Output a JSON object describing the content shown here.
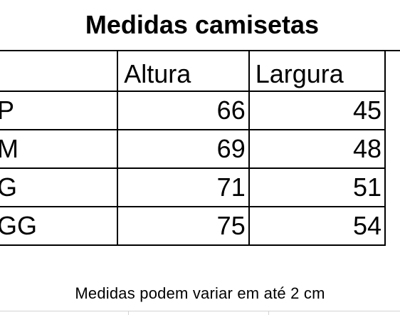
{
  "title": "Medidas camisetas",
  "table": {
    "headers": [
      "",
      "Altura",
      "Largura"
    ],
    "rows": [
      {
        "size": "P",
        "altura": "66",
        "largura": "45"
      },
      {
        "size": "M",
        "altura": "69",
        "largura": "48"
      },
      {
        "size": "G",
        "altura": "71",
        "largura": "51"
      },
      {
        "size": "GG",
        "altura": "75",
        "largura": "54"
      }
    ]
  },
  "note": "Medidas podem variar em até 2 cm"
}
